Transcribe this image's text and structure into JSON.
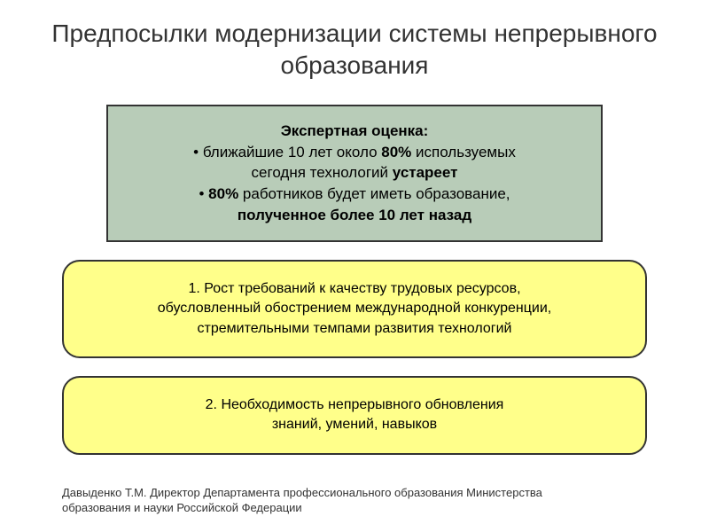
{
  "title": "Предпосылки модернизации системы непрерывного образования",
  "green_box": {
    "header": "Экспертная оценка:",
    "bullet1_prefix": "• ближайшие 10 лет около ",
    "bullet1_bold": "80%",
    "bullet1_suffix": " используемых",
    "line2_prefix": "сегодня технологий ",
    "line2_bold": "устареет",
    "bullet2_prefix": "• ",
    "bullet2_bold": "80%",
    "bullet2_suffix": " работников будет иметь образование,",
    "line4_bold": "полученное более 10 лет назад"
  },
  "yellow_box1": {
    "line1": "1.   Рост требований к качеству трудовых ресурсов,",
    "line2": "обусловленный обострением международной конкуренции,",
    "line3": "стремительными темпами развития технологий"
  },
  "yellow_box2": {
    "line1": "2. Необходимость непрерывного обновления",
    "line2": "знаний, умений, навыков"
  },
  "footer": {
    "line1": "Давыденко Т.М. Директор Департамента профессионального образования Министерства",
    "line2": "образования и науки Российской Федерации"
  },
  "colors": {
    "green_bg": "#b8ccb8",
    "yellow_bg": "#ffff8a",
    "border": "#333333",
    "text": "#000000",
    "title_color": "#333333",
    "page_bg": "#ffffff"
  },
  "layout": {
    "title_fontsize": 28,
    "green_fontsize": 17,
    "yellow_fontsize": 16,
    "footer_fontsize": 13,
    "green_width": 560,
    "yellow_width": 660,
    "yellow_radius": 20
  }
}
